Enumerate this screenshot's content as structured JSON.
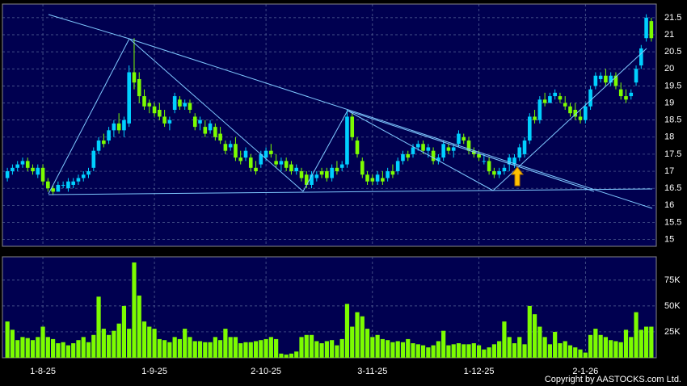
{
  "chart_data": {
    "type": "candlestick",
    "categories": [
      null,
      null,
      null,
      null,
      null,
      null,
      null,
      "1-8-25",
      null,
      null,
      null,
      null,
      null,
      null,
      null,
      null,
      null,
      null,
      null,
      null,
      null,
      null,
      null,
      null,
      null,
      null,
      null,
      null,
      null,
      "1-9-25",
      null,
      null,
      null,
      null,
      null,
      null,
      null,
      null,
      null,
      null,
      null,
      null,
      null,
      null,
      null,
      null,
      null,
      null,
      null,
      null,
      null,
      "2-10-25",
      null,
      null,
      null,
      null,
      null,
      null,
      null,
      null,
      null,
      null,
      null,
      null,
      null,
      null,
      null,
      null,
      null,
      null,
      null,
      null,
      "3-11-25",
      null,
      null,
      null,
      null,
      null,
      null,
      null,
      null,
      null,
      null,
      null,
      null,
      null,
      null,
      null,
      null,
      null,
      null,
      null,
      null,
      "1-12-25",
      null,
      null,
      null,
      null,
      null,
      null,
      null,
      null,
      null,
      null,
      null,
      null,
      null,
      null,
      null,
      null,
      null,
      null,
      null,
      null,
      "2-1-26",
      null,
      null,
      null,
      null,
      null,
      null,
      null,
      null,
      null,
      null,
      null,
      null,
      null
    ],
    "ohlc": [
      [
        16.8,
        17.1,
        16.7,
        17.0
      ],
      [
        17.0,
        17.2,
        16.9,
        17.1
      ],
      [
        17.1,
        17.3,
        17.0,
        17.2
      ],
      [
        17.2,
        17.4,
        17.1,
        17.3
      ],
      [
        17.3,
        17.4,
        17.0,
        17.1
      ],
      [
        17.1,
        17.2,
        16.9,
        17.0
      ],
      [
        16.9,
        17.2,
        16.8,
        17.1
      ],
      [
        17.1,
        17.2,
        16.6,
        16.7
      ],
      [
        16.7,
        16.8,
        16.4,
        16.5
      ],
      [
        16.5,
        16.6,
        16.3,
        16.4
      ],
      [
        16.4,
        16.7,
        16.4,
        16.6
      ],
      [
        16.6,
        16.7,
        16.5,
        16.6
      ],
      [
        16.5,
        16.8,
        16.4,
        16.7
      ],
      [
        16.6,
        16.8,
        16.5,
        16.7
      ],
      [
        16.7,
        16.9,
        16.6,
        16.8
      ],
      [
        16.8,
        17.0,
        16.7,
        16.9
      ],
      [
        16.9,
        17.1,
        16.8,
        17.0
      ],
      [
        17.1,
        17.7,
        17.0,
        17.6
      ],
      [
        17.6,
        18.0,
        17.5,
        17.9
      ],
      [
        17.9,
        18.1,
        17.7,
        17.8
      ],
      [
        17.9,
        18.3,
        17.8,
        18.2
      ],
      [
        18.2,
        18.5,
        18.0,
        18.4
      ],
      [
        18.4,
        18.7,
        18.1,
        18.2
      ],
      [
        18.2,
        18.6,
        18.0,
        18.5
      ],
      [
        18.4,
        20.1,
        18.3,
        19.9
      ],
      [
        19.9,
        20.9,
        19.4,
        19.6
      ],
      [
        19.7,
        19.9,
        19.0,
        19.2
      ],
      [
        19.2,
        19.4,
        18.8,
        18.9
      ],
      [
        19.0,
        19.1,
        18.7,
        18.9
      ],
      [
        18.9,
        19.0,
        18.6,
        18.7
      ],
      [
        18.8,
        19.0,
        18.5,
        18.6
      ],
      [
        18.6,
        18.8,
        18.3,
        18.4
      ],
      [
        18.4,
        18.6,
        18.2,
        18.5
      ],
      [
        18.8,
        19.3,
        18.7,
        19.2
      ],
      [
        19.1,
        19.2,
        18.8,
        18.9
      ],
      [
        18.9,
        19.1,
        18.8,
        19.0
      ],
      [
        19.0,
        19.1,
        18.7,
        18.8
      ],
      [
        18.6,
        18.7,
        18.2,
        18.3
      ],
      [
        18.4,
        18.6,
        18.2,
        18.5
      ],
      [
        18.3,
        18.5,
        18.0,
        18.1
      ],
      [
        18.2,
        18.5,
        18.1,
        18.4
      ],
      [
        18.3,
        18.4,
        17.9,
        18.0
      ],
      [
        18.1,
        18.3,
        17.8,
        17.9
      ],
      [
        17.8,
        17.9,
        17.5,
        17.6
      ],
      [
        17.7,
        17.9,
        17.6,
        17.8
      ],
      [
        17.8,
        18.0,
        17.3,
        17.4
      ],
      [
        17.4,
        17.6,
        17.2,
        17.3
      ],
      [
        17.4,
        17.7,
        17.3,
        17.6
      ],
      [
        17.4,
        17.5,
        17.0,
        17.1
      ],
      [
        17.1,
        17.3,
        16.9,
        17.0
      ],
      [
        17.2,
        17.6,
        17.1,
        17.5
      ],
      [
        17.4,
        17.7,
        17.3,
        17.6
      ],
      [
        17.6,
        17.8,
        17.4,
        17.5
      ],
      [
        17.3,
        17.5,
        17.1,
        17.2
      ],
      [
        17.2,
        17.4,
        17.0,
        17.3
      ],
      [
        17.3,
        17.4,
        17.0,
        17.1
      ],
      [
        17.2,
        17.3,
        16.9,
        17.0
      ],
      [
        17.0,
        17.2,
        16.9,
        17.1
      ],
      [
        17.0,
        17.1,
        16.7,
        16.8
      ],
      [
        16.9,
        17.0,
        16.5,
        16.6
      ],
      [
        16.6,
        17.0,
        16.5,
        16.9
      ],
      [
        16.8,
        17.0,
        16.7,
        16.9
      ],
      [
        17.0,
        17.1,
        16.8,
        16.9
      ],
      [
        17.0,
        17.1,
        16.7,
        16.8
      ],
      [
        16.8,
        17.2,
        16.7,
        17.1
      ],
      [
        17.1,
        17.3,
        16.9,
        17.0
      ],
      [
        17.1,
        17.3,
        17.0,
        17.2
      ],
      [
        17.2,
        18.8,
        17.1,
        18.6
      ],
      [
        18.6,
        18.7,
        17.9,
        18.0
      ],
      [
        17.9,
        18.0,
        17.4,
        17.5
      ],
      [
        17.3,
        17.4,
        16.8,
        16.9
      ],
      [
        16.9,
        17.0,
        16.6,
        16.7
      ],
      [
        16.8,
        16.9,
        16.6,
        16.7
      ],
      [
        16.7,
        17.0,
        16.6,
        16.9
      ],
      [
        16.8,
        17.0,
        16.6,
        16.7
      ],
      [
        16.8,
        17.1,
        16.7,
        17.0
      ],
      [
        17.0,
        17.2,
        16.8,
        16.9
      ],
      [
        17.0,
        17.4,
        16.9,
        17.3
      ],
      [
        17.3,
        17.6,
        17.2,
        17.5
      ],
      [
        17.5,
        17.6,
        17.3,
        17.4
      ],
      [
        17.5,
        17.8,
        17.4,
        17.7
      ],
      [
        17.7,
        17.9,
        17.6,
        17.8
      ],
      [
        17.8,
        17.9,
        17.5,
        17.6
      ],
      [
        17.6,
        17.8,
        17.4,
        17.7
      ],
      [
        17.6,
        17.7,
        17.2,
        17.3
      ],
      [
        17.3,
        17.5,
        17.2,
        17.4
      ],
      [
        17.4,
        17.9,
        17.3,
        17.8
      ],
      [
        17.7,
        17.8,
        17.5,
        17.6
      ],
      [
        17.6,
        17.8,
        17.4,
        17.7
      ],
      [
        17.8,
        18.2,
        17.7,
        18.1
      ],
      [
        18.0,
        18.1,
        17.8,
        17.9
      ],
      [
        17.9,
        18.0,
        17.5,
        17.6
      ],
      [
        17.6,
        17.7,
        17.4,
        17.5
      ],
      [
        17.5,
        17.6,
        17.3,
        17.4
      ],
      [
        17.3,
        17.5,
        17.2,
        17.3
      ],
      [
        17.3,
        17.4,
        16.9,
        17.0
      ],
      [
        17.0,
        17.1,
        16.8,
        16.9
      ],
      [
        16.9,
        17.1,
        16.8,
        17.0
      ],
      [
        17.0,
        17.2,
        16.9,
        17.1
      ],
      [
        17.2,
        17.5,
        17.0,
        17.4
      ],
      [
        17.2,
        17.5,
        17.1,
        17.4
      ],
      [
        17.4,
        17.8,
        17.3,
        17.7
      ],
      [
        17.5,
        18.0,
        17.4,
        17.9
      ],
      [
        17.9,
        18.7,
        17.8,
        18.6
      ],
      [
        18.6,
        18.8,
        18.4,
        18.5
      ],
      [
        18.5,
        19.2,
        18.4,
        19.1
      ],
      [
        19.1,
        19.3,
        18.9,
        19.0
      ],
      [
        19.0,
        19.3,
        19.0,
        19.2
      ],
      [
        19.2,
        19.4,
        19.1,
        19.3
      ],
      [
        19.2,
        19.3,
        19.0,
        19.1
      ],
      [
        19.0,
        19.2,
        18.8,
        18.9
      ],
      [
        18.9,
        19.0,
        18.6,
        18.7
      ],
      [
        18.8,
        19.0,
        18.5,
        18.6
      ],
      [
        18.6,
        18.8,
        18.4,
        18.5
      ],
      [
        18.5,
        19.0,
        18.4,
        18.9
      ],
      [
        18.9,
        19.5,
        18.8,
        19.4
      ],
      [
        19.5,
        19.9,
        19.4,
        19.8
      ],
      [
        19.7,
        19.9,
        19.6,
        19.8
      ],
      [
        19.8,
        20.0,
        19.5,
        19.6
      ],
      [
        19.6,
        19.9,
        19.5,
        19.8
      ],
      [
        19.8,
        19.9,
        19.4,
        19.5
      ],
      [
        19.4,
        19.6,
        19.1,
        19.2
      ],
      [
        19.2,
        19.4,
        19.0,
        19.1
      ],
      [
        19.2,
        19.4,
        19.1,
        19.3
      ],
      [
        19.6,
        20.1,
        19.5,
        20.0
      ],
      [
        20.1,
        20.7,
        20.0,
        20.6
      ],
      [
        20.9,
        21.6,
        20.8,
        21.5
      ],
      [
        21.4,
        21.5,
        20.8,
        20.9
      ]
    ],
    "volume": [
      35000,
      27000,
      17000,
      20000,
      19000,
      17000,
      20000,
      30000,
      20000,
      18000,
      14000,
      15000,
      12000,
      14000,
      17000,
      20000,
      15000,
      22000,
      59000,
      28000,
      22000,
      26000,
      33000,
      50000,
      28000,
      92000,
      60000,
      35000,
      30000,
      28000,
      18000,
      17000,
      15000,
      20000,
      18000,
      28000,
      20000,
      16000,
      16000,
      15000,
      15000,
      20000,
      17000,
      28000,
      20000,
      20000,
      14000,
      15000,
      15000,
      16000,
      17000,
      18000,
      20000,
      18000,
      4000,
      3000,
      4000,
      6000,
      20000,
      22000,
      22000,
      16000,
      14000,
      16000,
      17000,
      12000,
      18000,
      52000,
      30000,
      44000,
      40000,
      28000,
      20000,
      22000,
      18000,
      17000,
      15000,
      16000,
      15000,
      18000,
      14000,
      13000,
      12000,
      10000,
      12000,
      16000,
      26000,
      12000,
      13000,
      14000,
      13000,
      13000,
      14000,
      12000,
      8000,
      10000,
      13000,
      16000,
      35000,
      20000,
      14000,
      20000,
      13000,
      50000,
      42000,
      30000,
      20000,
      13000,
      25000,
      14000,
      16000,
      12000,
      10000,
      8000,
      5000,
      22000,
      28000,
      22000,
      20000,
      17000,
      16000,
      15000,
      27000,
      20000,
      44000,
      27000,
      30000,
      30000
    ],
    "up_color": "#00d0ff",
    "down_color": "#7cfc00",
    "volume_color": "#7cfc00",
    "ylim": [
      14.8,
      21.9
    ],
    "yticks": [
      15,
      15.5,
      16,
      16.5,
      17,
      17.5,
      18,
      18.5,
      19,
      19.5,
      20,
      20.5,
      21,
      21.5
    ],
    "y2lim": [
      0,
      97500
    ],
    "y2ticks": [
      {
        "value": 25000,
        "label": "25K"
      },
      {
        "value": 50000,
        "label": "50K"
      },
      {
        "value": 75000,
        "label": "75K"
      }
    ],
    "grid": true,
    "copyright": "Copyright by AASTOCKS.com Ltd."
  }
}
